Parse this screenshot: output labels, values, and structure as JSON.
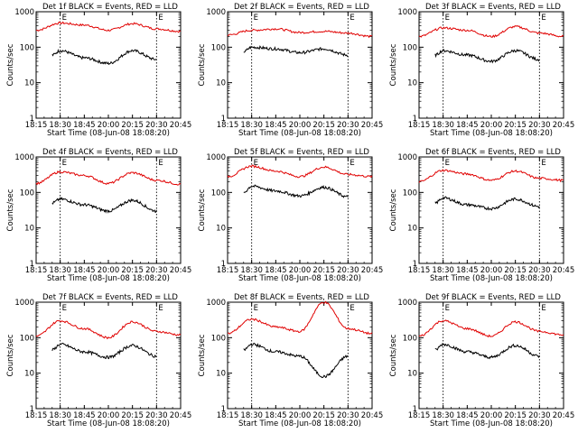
{
  "figure": {
    "background": "#ffffff",
    "colors": {
      "events": "#000000",
      "lld": "#e00000"
    }
  },
  "chart_data": [
    {
      "type": "line",
      "title": "Det 1f BLACK = Events, RED = LLD",
      "xlabel": "Start Time (08-Jun-08 18:08:20)",
      "ylabel": "Counts/sec",
      "x_ticks": [
        "18:15",
        "18:30",
        "18:45",
        "20:00",
        "20:15",
        "20:30",
        "20:45"
      ],
      "y_ticks": [
        "1",
        "10",
        "100",
        "1000"
      ],
      "yscale": "log",
      "ylim": [
        1,
        1000
      ],
      "markers": [
        {
          "label": "E",
          "at": "18:30"
        },
        {
          "label": "E",
          "at": "20:30"
        }
      ],
      "series": [
        {
          "color": "#e00000",
          "x": [
            "18:15",
            "18:30",
            "18:45",
            "20:00",
            "20:15",
            "20:30",
            "20:45"
          ],
          "values": [
            300,
            480,
            420,
            300,
            460,
            330,
            280
          ]
        },
        {
          "color": "#000000",
          "x": [
            "18:25",
            "18:30",
            "18:45",
            "20:00",
            "20:15",
            "20:30"
          ],
          "values": [
            60,
            80,
            50,
            35,
            80,
            45
          ]
        }
      ]
    },
    {
      "type": "line",
      "title": "Det 2f BLACK = Events, RED = LLD",
      "xlabel": "Start Time (08-Jun-08 18:08:20)",
      "ylabel": "Counts/sec",
      "x_ticks": [
        "18:15",
        "18:30",
        "18:45",
        "20:00",
        "20:15",
        "20:30",
        "20:45"
      ],
      "y_ticks": [
        "1",
        "10",
        "100",
        "1000"
      ],
      "yscale": "log",
      "ylim": [
        1,
        1000
      ],
      "markers": [
        {
          "label": "E",
          "at": "18:30"
        },
        {
          "label": "E",
          "at": "20:30"
        }
      ],
      "series": [
        {
          "color": "#e00000",
          "x": [
            "18:15",
            "18:30",
            "18:45",
            "20:00",
            "20:15",
            "20:30",
            "20:45"
          ],
          "values": [
            220,
            300,
            330,
            260,
            280,
            250,
            200
          ]
        },
        {
          "color": "#000000",
          "x": [
            "18:25",
            "18:30",
            "18:45",
            "20:00",
            "20:15",
            "20:30"
          ],
          "values": [
            75,
            100,
            90,
            70,
            90,
            60
          ]
        }
      ]
    },
    {
      "type": "line",
      "title": "Det 3f BLACK = Events, RED = LLD",
      "xlabel": "Start Time (08-Jun-08 18:08:20)",
      "ylabel": "Counts/sec",
      "x_ticks": [
        "18:15",
        "18:30",
        "18:45",
        "20:00",
        "20:15",
        "20:30",
        "20:45"
      ],
      "y_ticks": [
        "1",
        "10",
        "100",
        "1000"
      ],
      "yscale": "log",
      "ylim": [
        1,
        1000
      ],
      "markers": [
        {
          "label": "E",
          "at": "18:30"
        },
        {
          "label": "E",
          "at": "20:30"
        }
      ],
      "series": [
        {
          "color": "#e00000",
          "x": [
            "18:15",
            "18:30",
            "18:45",
            "20:00",
            "20:15",
            "20:30",
            "20:45"
          ],
          "values": [
            200,
            350,
            300,
            200,
            380,
            250,
            200
          ]
        },
        {
          "color": "#000000",
          "x": [
            "18:25",
            "18:30",
            "18:45",
            "20:00",
            "20:15",
            "20:30"
          ],
          "values": [
            60,
            80,
            60,
            40,
            80,
            45
          ]
        }
      ]
    },
    {
      "type": "line",
      "title": "Det 4f BLACK = Events, RED = LLD",
      "xlabel": "Start Time (08-Jun-08 18:08:20)",
      "ylabel": "Counts/sec",
      "x_ticks": [
        "18:15",
        "18:30",
        "18:45",
        "20:00",
        "20:15",
        "20:30",
        "20:45"
      ],
      "y_ticks": [
        "1",
        "10",
        "100",
        "1000"
      ],
      "yscale": "log",
      "ylim": [
        1,
        1000
      ],
      "markers": [
        {
          "label": "E",
          "at": "18:30"
        },
        {
          "label": "E",
          "at": "20:30"
        }
      ],
      "series": [
        {
          "color": "#e00000",
          "x": [
            "18:15",
            "18:30",
            "18:45",
            "20:00",
            "20:15",
            "20:30",
            "20:45"
          ],
          "values": [
            180,
            380,
            300,
            180,
            360,
            220,
            170
          ]
        },
        {
          "color": "#000000",
          "x": [
            "18:25",
            "18:30",
            "18:45",
            "20:00",
            "20:15",
            "20:30"
          ],
          "values": [
            50,
            65,
            45,
            30,
            60,
            30
          ]
        }
      ]
    },
    {
      "type": "line",
      "title": "Det 5f BLACK = Events, RED = LLD",
      "xlabel": "Start Time (08-Jun-08 18:08:20)",
      "ylabel": "Counts/sec",
      "x_ticks": [
        "18:15",
        "18:30",
        "18:45",
        "20:00",
        "20:15",
        "20:30",
        "20:45"
      ],
      "y_ticks": [
        "1",
        "10",
        "100",
        "1000"
      ],
      "yscale": "log",
      "ylim": [
        1,
        1000
      ],
      "markers": [
        {
          "label": "E",
          "at": "18:30"
        },
        {
          "label": "E",
          "at": "20:30"
        }
      ],
      "series": [
        {
          "color": "#e00000",
          "x": [
            "18:15",
            "18:30",
            "18:45",
            "20:00",
            "20:15",
            "20:30",
            "20:45"
          ],
          "values": [
            280,
            550,
            400,
            280,
            520,
            320,
            280
          ]
        },
        {
          "color": "#000000",
          "x": [
            "18:25",
            "18:30",
            "18:45",
            "20:00",
            "20:15",
            "20:30"
          ],
          "values": [
            100,
            150,
            110,
            80,
            140,
            75
          ]
        }
      ]
    },
    {
      "type": "line",
      "title": "Det 6f BLACK = Events, RED = LLD",
      "xlabel": "Start Time (08-Jun-08 18:08:20)",
      "ylabel": "Counts/sec",
      "x_ticks": [
        "18:15",
        "18:30",
        "18:45",
        "20:00",
        "20:15",
        "20:30",
        "20:45"
      ],
      "y_ticks": [
        "1",
        "10",
        "100",
        "1000"
      ],
      "yscale": "log",
      "ylim": [
        1,
        1000
      ],
      "markers": [
        {
          "label": "E",
          "at": "18:30"
        },
        {
          "label": "E",
          "at": "20:30"
        }
      ],
      "series": [
        {
          "color": "#e00000",
          "x": [
            "18:15",
            "18:30",
            "18:45",
            "20:00",
            "20:15",
            "20:30",
            "20:45"
          ],
          "values": [
            200,
            420,
            330,
            220,
            400,
            250,
            220
          ]
        },
        {
          "color": "#000000",
          "x": [
            "18:25",
            "18:30",
            "18:45",
            "20:00",
            "20:15",
            "20:30"
          ],
          "values": [
            50,
            70,
            45,
            35,
            65,
            40
          ]
        }
      ]
    },
    {
      "type": "line",
      "title": "Det 7f BLACK = Events, RED = LLD",
      "xlabel": "Start Time (08-Jun-08 18:08:20)",
      "ylabel": "Counts/sec",
      "x_ticks": [
        "18:15",
        "18:30",
        "18:45",
        "20:00",
        "20:15",
        "20:30",
        "20:45"
      ],
      "y_ticks": [
        "1",
        "10",
        "100",
        "1000"
      ],
      "yscale": "log",
      "ylim": [
        1,
        1000
      ],
      "markers": [
        {
          "label": "E",
          "at": "18:30"
        },
        {
          "label": "E",
          "at": "20:30"
        }
      ],
      "series": [
        {
          "color": "#e00000",
          "x": [
            "18:15",
            "18:30",
            "18:45",
            "20:00",
            "20:15",
            "20:30",
            "20:45"
          ],
          "values": [
            110,
            300,
            180,
            100,
            280,
            150,
            120
          ]
        },
        {
          "color": "#000000",
          "x": [
            "18:25",
            "18:30",
            "18:45",
            "20:00",
            "20:15",
            "20:30"
          ],
          "values": [
            45,
            65,
            40,
            28,
            60,
            30
          ]
        }
      ]
    },
    {
      "type": "line",
      "title": "Det 8f BLACK = Events, RED = LLD",
      "xlabel": "Start Time (08-Jun-08 18:08:20)",
      "ylabel": "Counts/sec",
      "x_ticks": [
        "18:15",
        "18:30",
        "18:45",
        "20:00",
        "20:15",
        "20:30",
        "20:45"
      ],
      "y_ticks": [
        "1",
        "10",
        "100",
        "1000"
      ],
      "yscale": "log",
      "ylim": [
        1,
        1000
      ],
      "markers": [
        {
          "label": "E",
          "at": "18:30"
        },
        {
          "label": "E",
          "at": "20:30"
        }
      ],
      "series": [
        {
          "color": "#e00000",
          "x": [
            "18:15",
            "18:30",
            "18:45",
            "20:00",
            "20:15",
            "20:30",
            "20:45"
          ],
          "values": [
            130,
            330,
            200,
            150,
            1000,
            180,
            130
          ]
        },
        {
          "color": "#000000",
          "x": [
            "18:25",
            "18:30",
            "18:45",
            "20:00",
            "20:15",
            "20:30"
          ],
          "values": [
            45,
            65,
            40,
            30,
            8,
            30
          ]
        }
      ]
    },
    {
      "type": "line",
      "title": "Det 9f BLACK = Events, RED = LLD",
      "xlabel": "Start Time (08-Jun-08 18:08:20)",
      "ylabel": "Counts/sec",
      "x_ticks": [
        "18:15",
        "18:30",
        "18:45",
        "20:00",
        "20:15",
        "20:30",
        "20:45"
      ],
      "y_ticks": [
        "1",
        "10",
        "100",
        "1000"
      ],
      "yscale": "log",
      "ylim": [
        1,
        1000
      ],
      "markers": [
        {
          "label": "E",
          "at": "18:30"
        },
        {
          "label": "E",
          "at": "20:30"
        }
      ],
      "series": [
        {
          "color": "#e00000",
          "x": [
            "18:15",
            "18:30",
            "18:45",
            "20:00",
            "20:15",
            "20:30",
            "20:45"
          ],
          "values": [
            110,
            300,
            180,
            110,
            280,
            150,
            120
          ]
        },
        {
          "color": "#000000",
          "x": [
            "18:25",
            "18:30",
            "18:45",
            "20:00",
            "20:15",
            "20:30"
          ],
          "values": [
            45,
            65,
            40,
            28,
            60,
            30
          ]
        }
      ]
    }
  ]
}
